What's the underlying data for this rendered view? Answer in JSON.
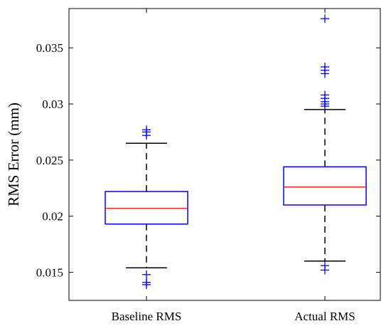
{
  "chart_data": {
    "type": "boxplot",
    "title": "",
    "xlabel": "",
    "ylabel": "RMS Error (mm)",
    "ylim": [
      0.0125,
      0.0385
    ],
    "yticks": [
      0.015,
      0.02,
      0.025,
      0.03,
      0.035
    ],
    "ytick_labels": [
      "0.015",
      "0.02",
      "0.025",
      "0.03",
      "0.035"
    ],
    "grid": false,
    "colors": {
      "box": "#0000ff",
      "median": "#ff0000",
      "whisker": "#000000",
      "outlier": "#0000ff"
    },
    "categories": [
      "Baseline RMS",
      "Actual RMS"
    ],
    "boxes": [
      {
        "label": "Baseline RMS",
        "whisker_low": 0.0154,
        "q1": 0.0193,
        "median": 0.0207,
        "q3": 0.0222,
        "whisker_high": 0.0265,
        "outliers": [
          0.0277,
          0.0275,
          0.0272,
          0.0148,
          0.0141,
          0.0139
        ]
      },
      {
        "label": "Actual RMS",
        "whisker_low": 0.016,
        "q1": 0.021,
        "median": 0.0226,
        "q3": 0.0244,
        "whisker_high": 0.0295,
        "outliers": [
          0.0376,
          0.0333,
          0.033,
          0.0327,
          0.0308,
          0.0305,
          0.0302,
          0.03,
          0.0298,
          0.0156,
          0.0152
        ]
      }
    ]
  }
}
